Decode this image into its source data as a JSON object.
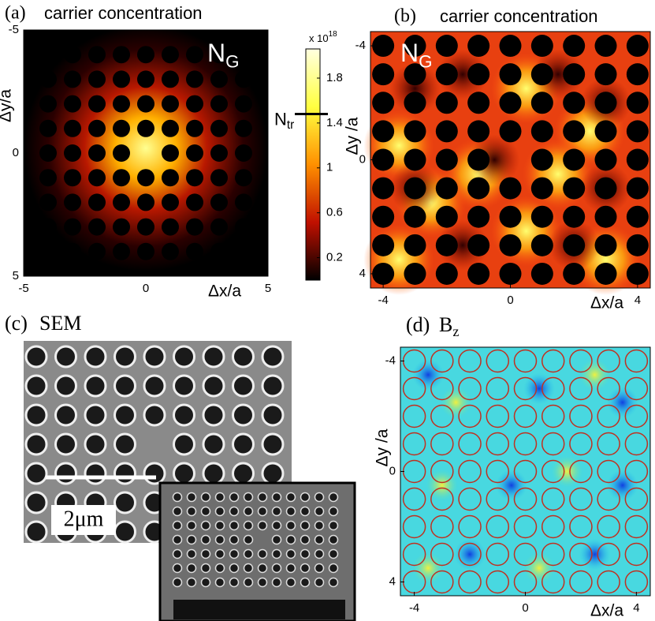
{
  "panels": [
    {
      "label": "(a)",
      "title": "carrier concentration",
      "annotation": {
        "main": "N",
        "sub": "G"
      },
      "xlabel": "Δx/a",
      "ylabel": "Δy/a",
      "xlim": [
        -5,
        5
      ],
      "ylim": [
        -5,
        5
      ],
      "xticks": [
        -5,
        0,
        5
      ],
      "yticks": [
        -5,
        0,
        5
      ],
      "colorbar": {
        "multiplier": "x 10",
        "exponent": "18",
        "lim": [
          0,
          2.06
        ],
        "ticks": [
          0.2,
          0.6,
          1,
          1.4,
          1.8
        ],
        "marker": {
          "main": "N",
          "sub": "tr",
          "value": 1.48
        }
      }
    },
    {
      "label": "(b)",
      "title": "carrier concentration",
      "annotation": {
        "main": "N",
        "sub": "G"
      },
      "xlabel": "Δx/a",
      "ylabel": "Δy /a",
      "xlim": [
        -4.4,
        4.4
      ],
      "ylim": [
        -4.5,
        4.5
      ],
      "xticks": [
        -4,
        0,
        4
      ],
      "yticks": [
        -4,
        0,
        4
      ]
    },
    {
      "label": "(c)",
      "title": "SEM",
      "scale_bar": "2μm"
    },
    {
      "label": "(d)",
      "title": {
        "main": "B",
        "sub": "z"
      },
      "xlabel": "Δx/a",
      "ylabel": "Δy /a",
      "xlim": [
        -4.5,
        4.5
      ],
      "ylim": [
        -4.5,
        4.5
      ],
      "xticks": [
        -4,
        0,
        4
      ],
      "yticks": [
        -4,
        0,
        4
      ]
    }
  ]
}
